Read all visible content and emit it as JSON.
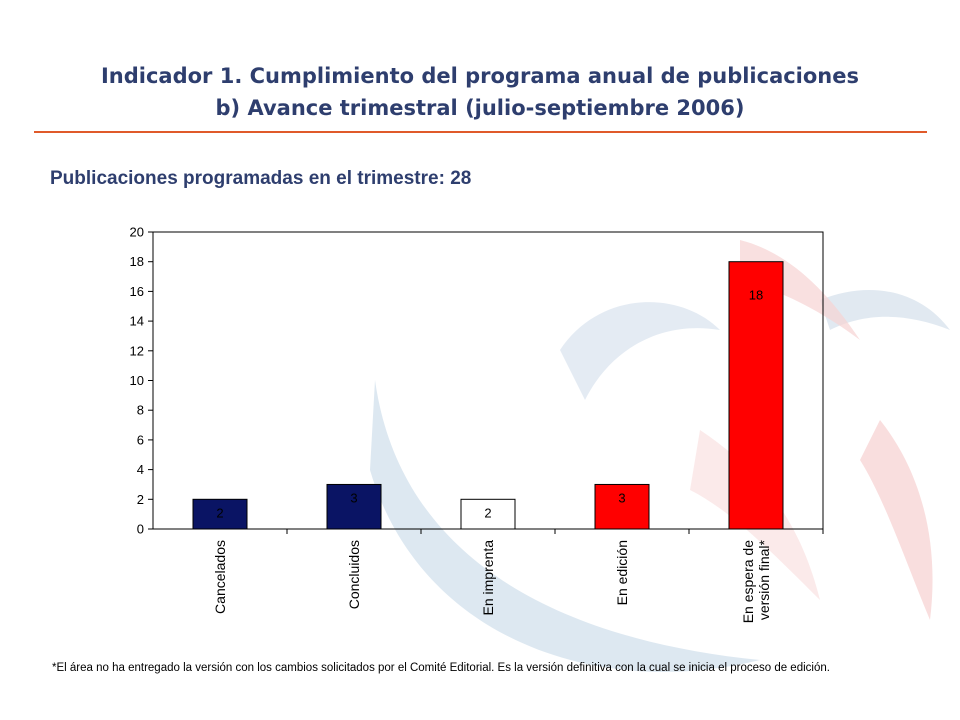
{
  "header": {
    "title_line1": "Indicador 1. Cumplimiento del programa anual de publicaciones",
    "title_line2": "b) Avance trimestral (julio-septiembre 2006)",
    "subtitle": "Publicaciones programadas en el trimestre: 28"
  },
  "chart_data": {
    "type": "bar",
    "categories": [
      [
        "Cancelados"
      ],
      [
        "Concluidos"
      ],
      [
        "En imprenta"
      ],
      [
        "En edición"
      ],
      [
        "En espera de",
        "versión final*"
      ]
    ],
    "values": [
      2,
      3,
      2,
      3,
      18
    ],
    "bar_colors": [
      "#0A1464",
      "#0A1464",
      "#FFFFFF",
      "#FF0000",
      "#FF0000"
    ],
    "label_colors": [
      "#000000",
      "#000000",
      "#000000",
      "#000000",
      "#000000"
    ],
    "ylim": [
      0,
      20
    ],
    "yticks": [
      0,
      2,
      4,
      6,
      8,
      10,
      12,
      14,
      16,
      18,
      20
    ],
    "grid": false,
    "legend": "none"
  },
  "footnote": "*El área no ha entregado la versión con los cambios solicitados por el Comité Editorial. Es la versión definitiva con la cual se inicia el proceso de edición.",
  "colors": {
    "title": "#2E3E6E",
    "rule": "#E05A2A",
    "navy": "#0A1464",
    "red": "#FF0000"
  }
}
